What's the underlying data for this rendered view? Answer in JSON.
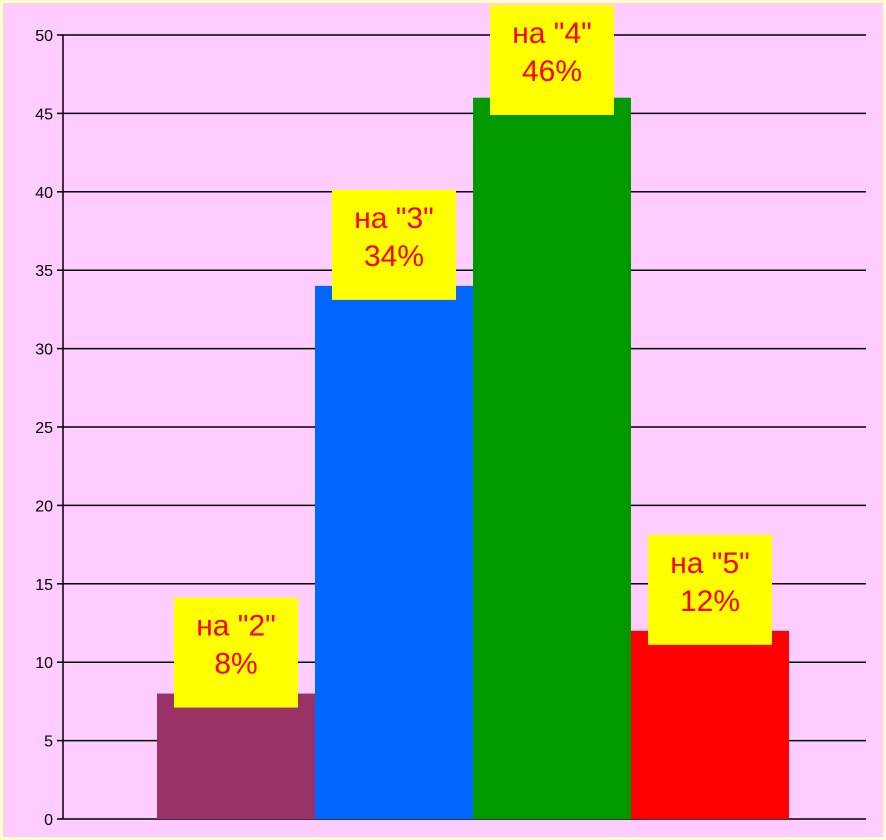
{
  "chart_data": {
    "type": "bar",
    "categories": [
      "на \"2\"",
      "на \"3\"",
      "на \"4\"",
      "на \"5\""
    ],
    "values": [
      8,
      34,
      46,
      12
    ],
    "data_labels": [
      [
        "на \"2\"",
        "8%"
      ],
      [
        "на \"3\"",
        "34%"
      ],
      [
        "на \"4\"",
        "46%"
      ],
      [
        "на \"5\"",
        "12%"
      ]
    ],
    "colors": [
      "#993366",
      "#0066ff",
      "#009900",
      "#ff0000"
    ],
    "label_background": "#ffff00",
    "label_color": "#ff0000",
    "plot_background": "#ffccff",
    "page_background": "#ffffcc",
    "ylim": [
      0,
      50
    ],
    "yticks": [
      "0",
      "5",
      "10",
      "15",
      "20",
      "25",
      "30",
      "35",
      "40",
      "45",
      "50"
    ],
    "grid": true,
    "legend": "none",
    "title": "",
    "xlabel": "",
    "ylabel": ""
  }
}
